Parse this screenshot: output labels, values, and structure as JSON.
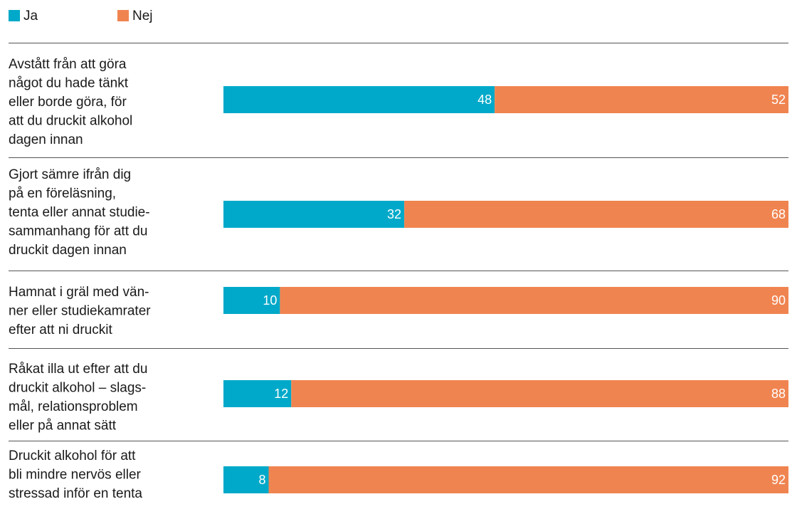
{
  "chart_data": {
    "type": "stacked-bar",
    "categories": [
      [
        "Avstått från att göra",
        "något du hade tänkt",
        "eller borde göra, för",
        "att du druckit alkohol",
        "dagen innan"
      ],
      [
        "Gjort sämre ifrån dig",
        "på en föreläsning,",
        "tenta eller annat studie-",
        "sammanhang för att du",
        "druckit dagen innan"
      ],
      [
        "Hamnat i gräl med vän-",
        "ner eller studiekamrater",
        "efter att ni druckit"
      ],
      [
        "Råkat illa ut efter att du",
        "druckit alkohol – slags-",
        "mål, relationsproblem",
        "eller på annat sätt"
      ],
      [
        "Druckit alkohol för att",
        "bli mindre nervös eller",
        "stressad inför en tenta"
      ]
    ],
    "series": [
      {
        "name": "Ja",
        "color": "#00a9c9",
        "values": [
          48,
          32,
          10,
          12,
          8
        ]
      },
      {
        "name": "Nej",
        "color": "#f08450",
        "values": [
          52,
          68,
          90,
          88,
          92
        ]
      }
    ],
    "legend": "top-left"
  }
}
